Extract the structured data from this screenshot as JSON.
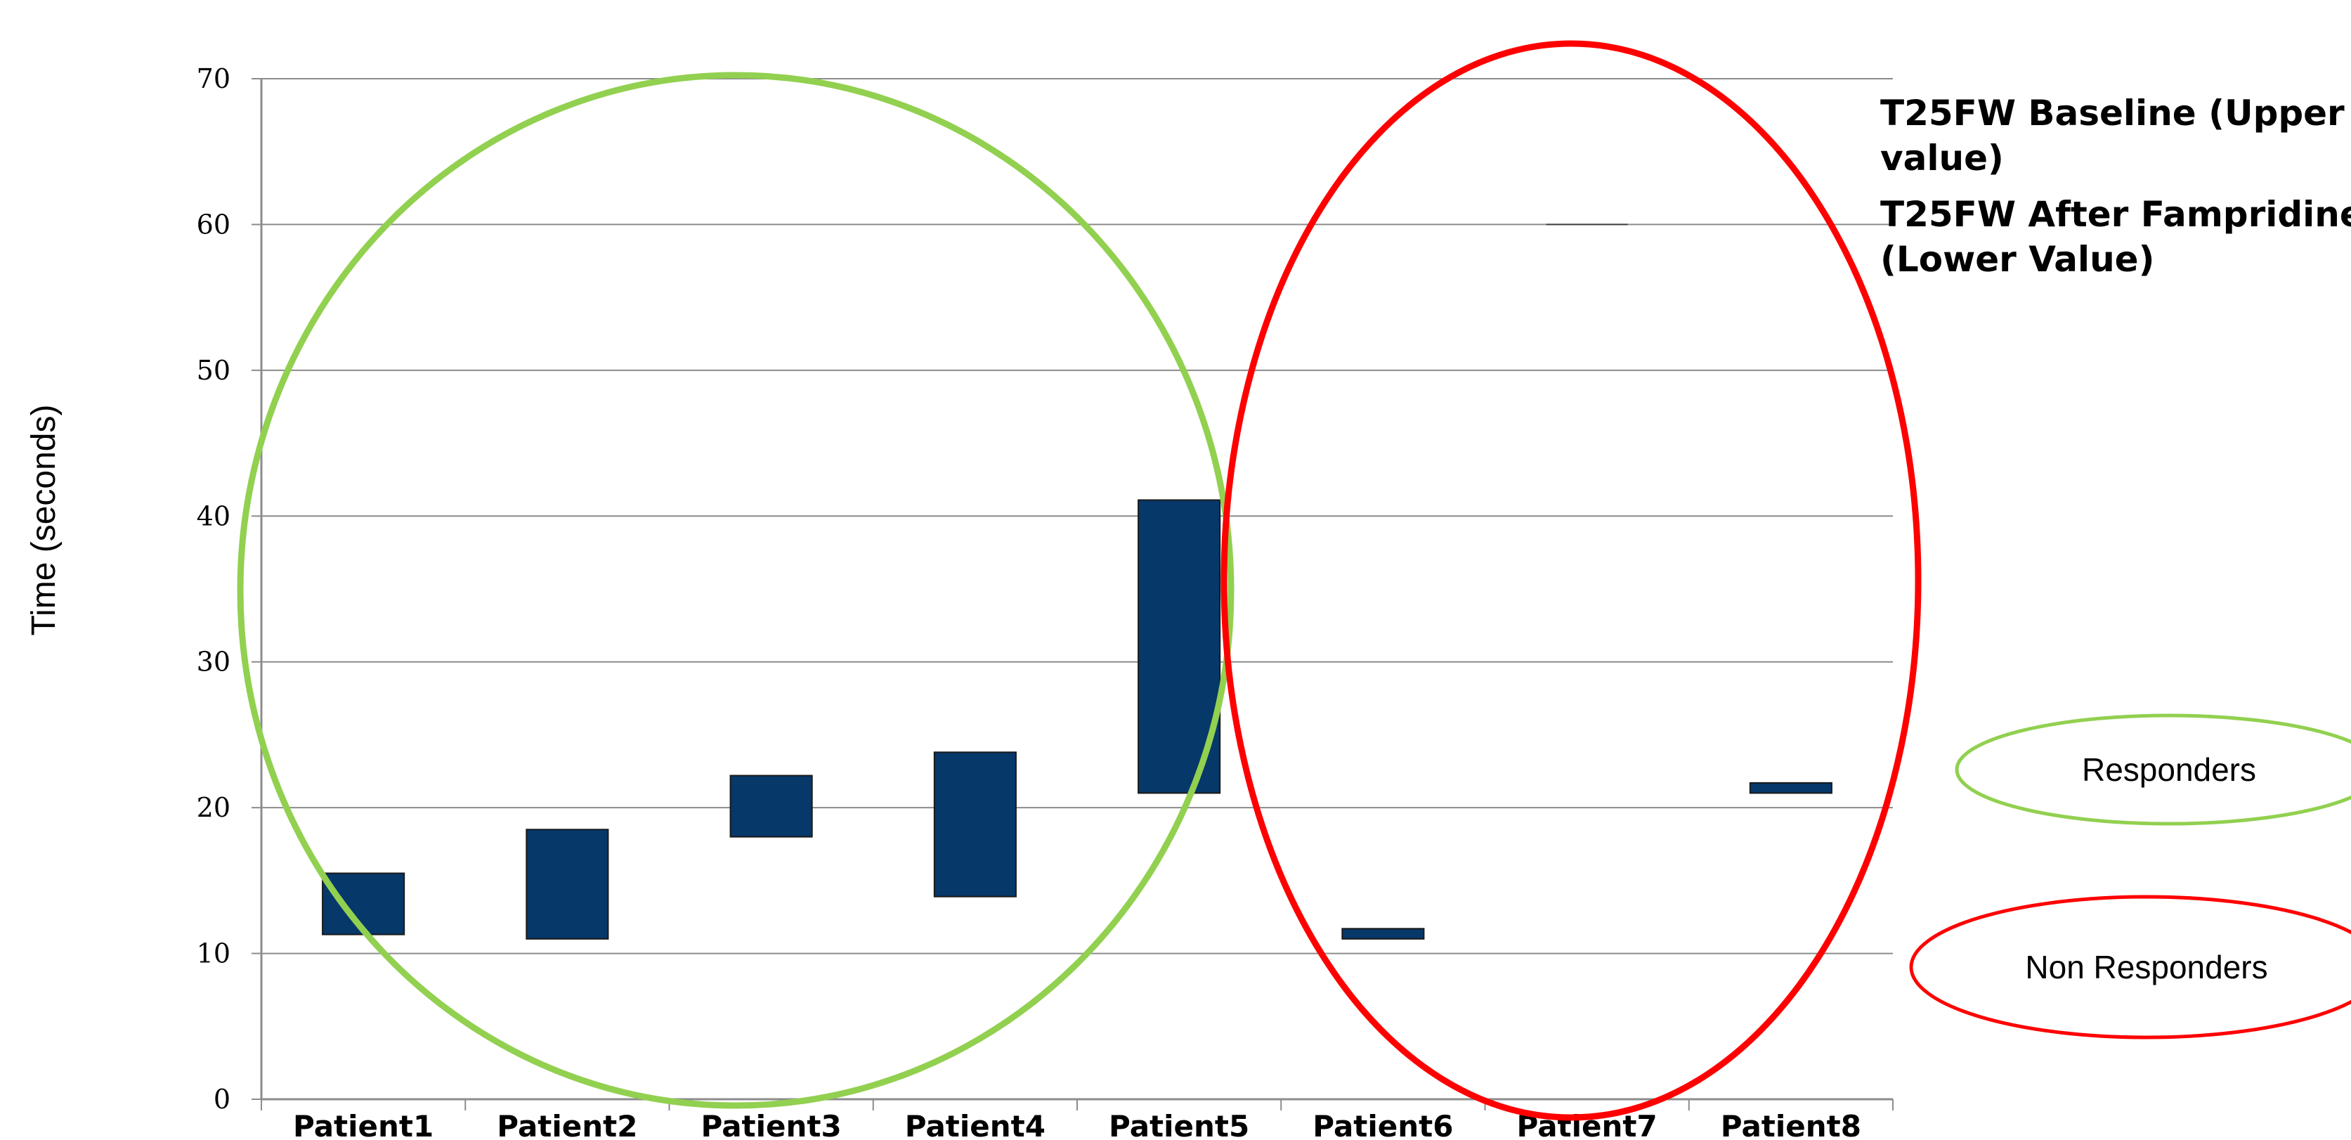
{
  "chart_data": {
    "type": "bar",
    "subtype": "floating-range",
    "ylabel": "Time (seconds)",
    "xlabel": "",
    "ylim": [
      0,
      70
    ],
    "yticks": [
      0,
      10,
      20,
      30,
      40,
      50,
      60,
      70
    ],
    "grid": true,
    "categories": [
      "Patient1",
      "Patient2",
      "Patient3",
      "Patient4",
      "Patient5",
      "Patient6",
      "Patient7",
      "Patient8"
    ],
    "series": [
      {
        "name": "T25FW Baseline (Upper value)",
        "values": [
          15.5,
          18.5,
          22.2,
          23.8,
          41.1,
          11.7,
          60.0,
          21.7
        ]
      },
      {
        "name": "T25FW After Fampridine (Lower Value)",
        "values": [
          11.3,
          11.0,
          18.0,
          13.9,
          21.0,
          11.0,
          60.0,
          21.0
        ]
      }
    ],
    "bar_color": "#06386a",
    "annotations": [
      {
        "label": "Responders",
        "color": "#92d050",
        "members": [
          "Patient1",
          "Patient2",
          "Patient3",
          "Patient4",
          "Patient5"
        ]
      },
      {
        "label": "Non Responders",
        "color": "#ff0000",
        "members": [
          "Patient6",
          "Patient7",
          "Patient8"
        ]
      }
    ],
    "legend_notes": [
      "T25FW Baseline (Upper value)",
      "T25FW After Fampridine (Lower Value)"
    ],
    "legend_position": "top-right"
  }
}
